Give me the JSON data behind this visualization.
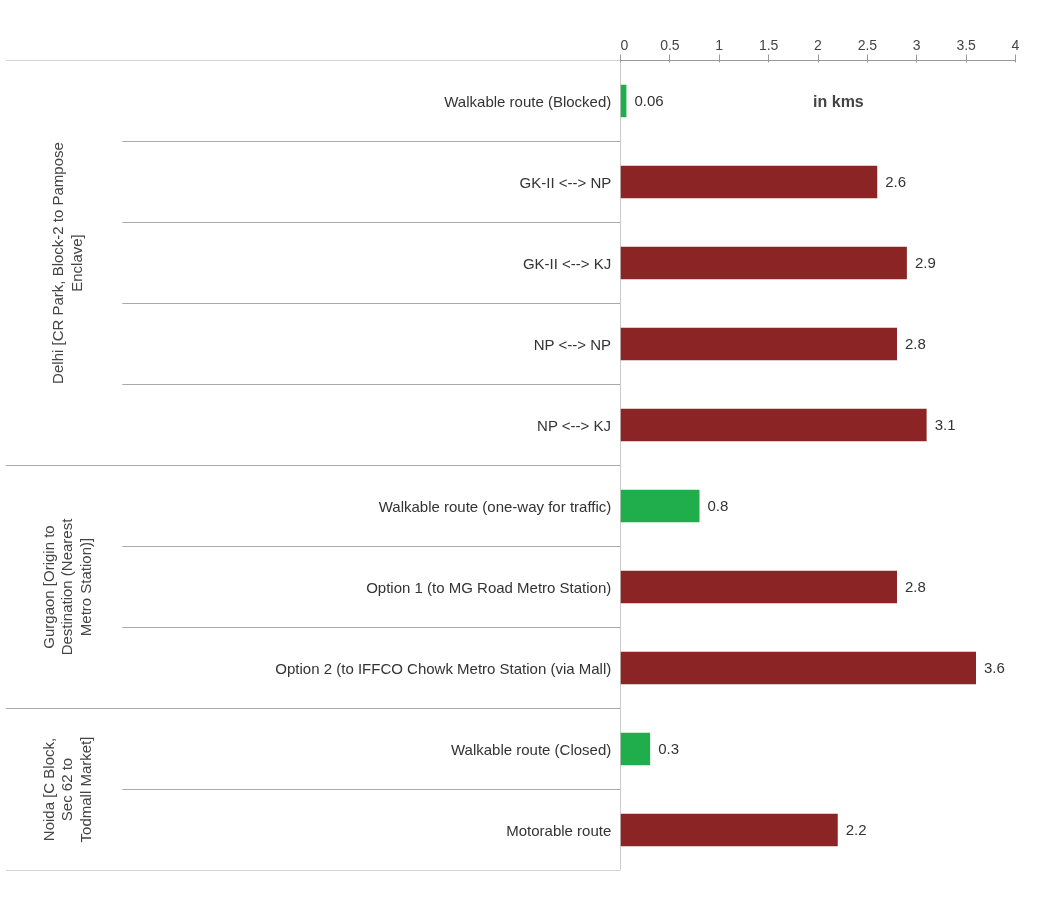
{
  "chart_data": {
    "type": "bar",
    "orientation": "horizontal",
    "categories": [
      "Walkable route (Blocked)",
      "GK-II <--> NP",
      "GK-II <--> KJ",
      "NP <--> NP",
      "NP <--> KJ",
      "Walkable route (one-way for traffic)",
      "Option 1 (to MG Road Metro Station)",
      "Option 2 (to IFFCO Chowk Metro Station (via Mall)",
      "Walkable route (Closed)",
      "Motorable route"
    ],
    "values": [
      0.06,
      2.6,
      2.9,
      2.8,
      3.1,
      0.8,
      2.8,
      3.6,
      0.3,
      2.2
    ],
    "colors": [
      "#1fae4b",
      "#8b2525",
      "#8b2525",
      "#8b2525",
      "#8b2525",
      "#1fae4b",
      "#8b2525",
      "#8b2525",
      "#1fae4b",
      "#8b2525"
    ],
    "xlim": [
      0,
      4
    ],
    "xticks": [
      0,
      0.5,
      1,
      1.5,
      2,
      2.5,
      3,
      3.5,
      4
    ],
    "data_labels": true,
    "grid": false,
    "annotations": [
      "in kms",
      "Delhi [CR Park, Block-2 to Pampose Enclave]",
      "Gurgaon [Origin to Destination (Nearest Metro Station)]",
      "Noida [C Block, Sec 62 to Todmall Market]"
    ]
  }
}
